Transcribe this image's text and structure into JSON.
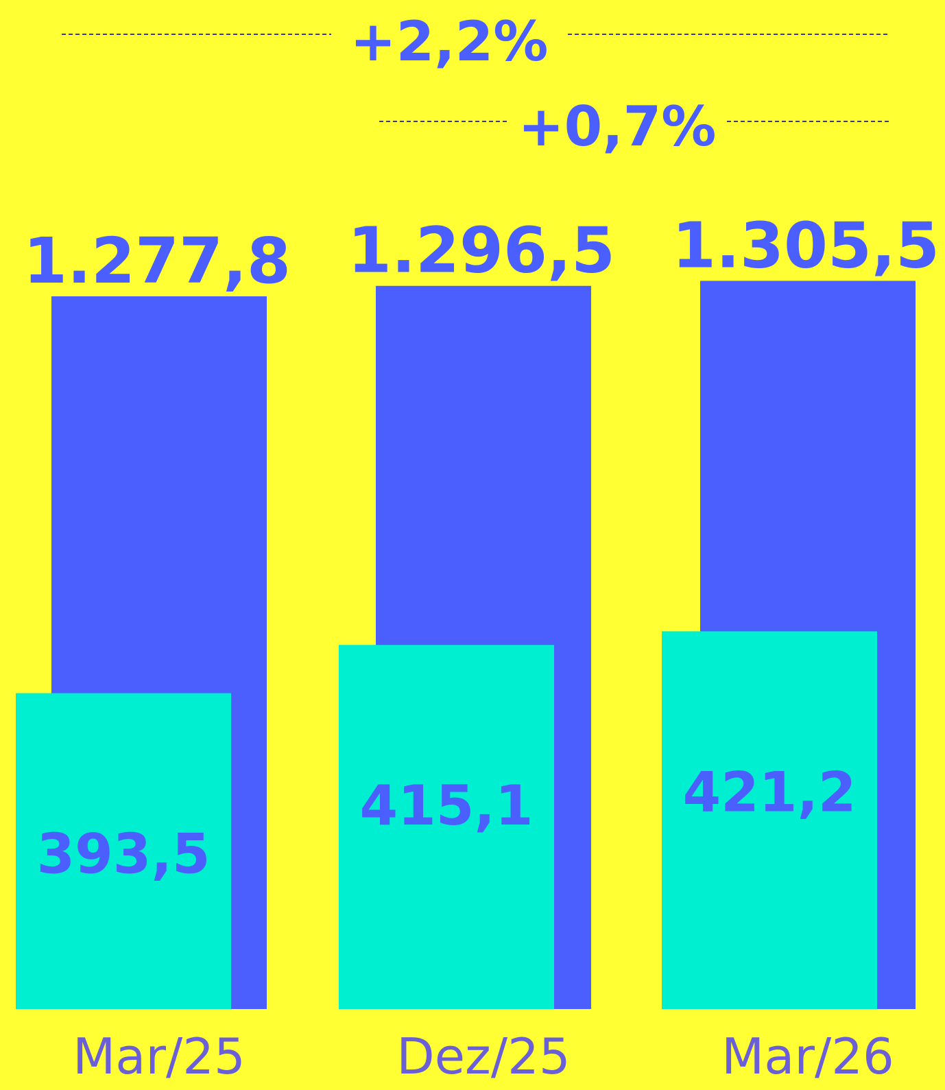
{
  "chart_data": {
    "type": "bar",
    "categories": [
      "Mar/25",
      "Dez/25",
      "Mar/26"
    ],
    "series": [
      {
        "color": "#4a5ffe",
        "values": [
          1277.8,
          1296.5,
          1305.5
        ],
        "value_labels": [
          "1.277,8",
          "1.296,5",
          "1.305,5"
        ]
      },
      {
        "color": "#00efd0",
        "axis": "y2",
        "values": [
          393.5,
          415.1,
          421.2
        ],
        "value_labels": [
          "393,5",
          "415,1",
          "421,2"
        ]
      }
    ],
    "ylim": [
      0,
      1809
    ],
    "y2lim": [
      252,
      704
    ],
    "annotations": [
      "+2,2%",
      "+0,7%"
    ]
  }
}
